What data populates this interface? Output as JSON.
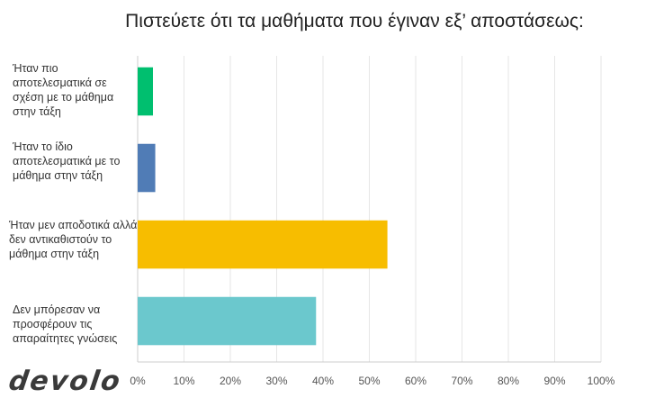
{
  "chart_data": {
    "type": "bar",
    "orientation": "horizontal",
    "title": "Πιστεύετε ότι τα μαθήματα που έγιναν εξ’ αποστάσεως:",
    "categories": [
      "Ήταν πιο αποτελεσματικά σε σχέση με το μάθημα στην τάξη",
      "Ήταν το ίδιο αποτελεσματικά με το μάθημα στην τάξη",
      "Ήταν μεν αποδοτικά αλλά δεν αντικαθιστούν το μάθημα στην τάξη",
      "Δεν μπόρεσαν να προσφέρουν τις απαραίτητες γνώσεις"
    ],
    "values": [
      3.3,
      3.8,
      53.9,
      38.5
    ],
    "colors": [
      "#00bf6f",
      "#507cb6",
      "#f7bd00",
      "#6bc8cd"
    ],
    "xlim": [
      0,
      100
    ],
    "x_ticks": [
      "0%",
      "10%",
      "20%",
      "30%",
      "40%",
      "50%",
      "60%",
      "70%",
      "80%",
      "90%",
      "100%"
    ],
    "grid": true,
    "xlabel": "",
    "ylabel": ""
  },
  "logo": "devolo"
}
